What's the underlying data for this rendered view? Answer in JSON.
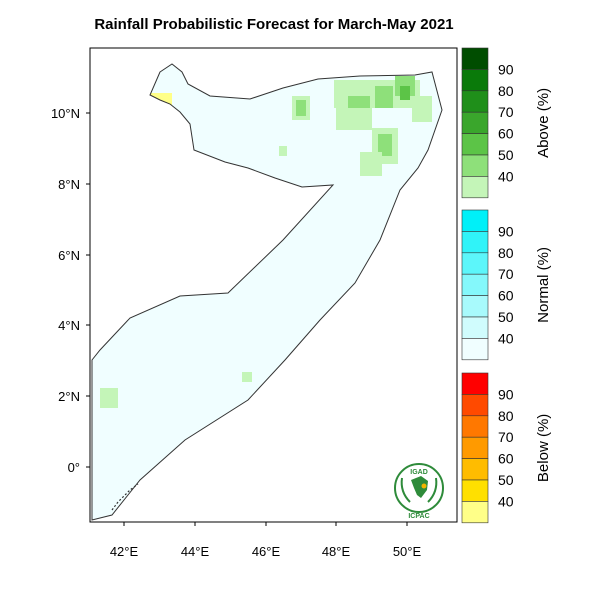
{
  "title": "Rainfall Probabilistic Forecast for March-May 2021",
  "x_ticks": [
    "42°E",
    "44°E",
    "46°E",
    "48°E",
    "50°E"
  ],
  "y_ticks": [
    "10°N",
    "8°N",
    "6°N",
    "4°N",
    "2°N",
    "0°"
  ],
  "colorbars": [
    {
      "name": "Above (%)",
      "labels": [
        "90",
        "80",
        "70",
        "60",
        "50",
        "40"
      ],
      "colors": [
        "#004d00",
        "#0a7a0a",
        "#1f8f1a",
        "#3aa62c",
        "#5cc447",
        "#8ee07a",
        "#c4f5b8"
      ]
    },
    {
      "name": "Normal (%)",
      "labels": [
        "90",
        "80",
        "70",
        "60",
        "50",
        "40"
      ],
      "colors": [
        "#00f0f8",
        "#30f3f8",
        "#5cf6fa",
        "#84f8fb",
        "#a8fafc",
        "#d0fcfd",
        "#f0feff"
      ]
    },
    {
      "name": "Below (%)",
      "labels": [
        "90",
        "80",
        "70",
        "60",
        "50",
        "40"
      ],
      "colors": [
        "#ff0000",
        "#ff4a00",
        "#ff7800",
        "#ff9a00",
        "#ffbc00",
        "#ffe000",
        "#ffff88"
      ]
    }
  ],
  "logo": {
    "top": "IGAD",
    "bottom": "ICPAC"
  },
  "map_colors": {
    "normal_base": "#f0feff",
    "above_light": "#c4f5b8",
    "above_mid": "#8ee07a",
    "above_dark": "#5cc447",
    "below_light": "#ffff88"
  }
}
